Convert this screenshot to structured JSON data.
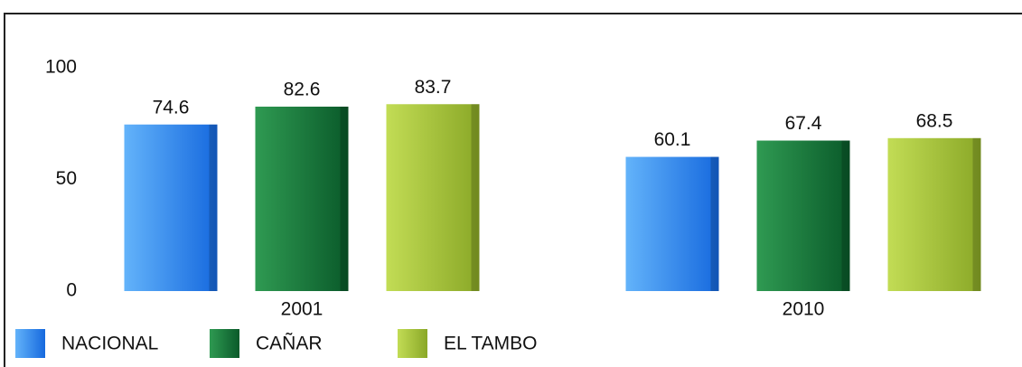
{
  "chart_data": {
    "type": "bar",
    "categories": [
      "2001",
      "2010"
    ],
    "series": [
      {
        "name": "NACIONAL",
        "color": "#3a8ef0",
        "values": [
          74.6,
          60.1
        ]
      },
      {
        "name": "CAÑAR",
        "color": "#137a3a",
        "values": [
          82.6,
          67.4
        ]
      },
      {
        "name": "EL TAMBO",
        "color": "#a6c93a",
        "values": [
          83.7,
          68.5
        ]
      }
    ],
    "ylim": [
      0,
      100
    ],
    "yticks": [
      0,
      50,
      100
    ],
    "grid": false
  }
}
